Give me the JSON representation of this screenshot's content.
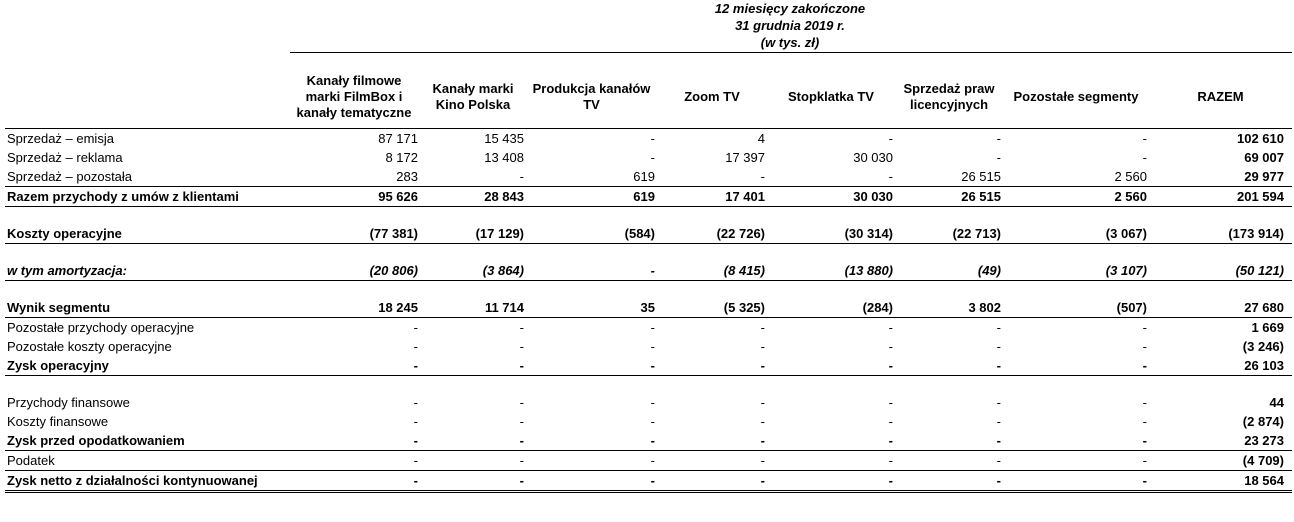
{
  "header": {
    "line1": "12 miesięcy zakończone",
    "line2": "31 grudnia 2019 r.",
    "line3": "(w tys. zł)"
  },
  "columns": [
    "",
    "Kanały filmowe marki FilmBox i kanały tematyczne",
    "Kanały marki Kino Polska",
    "Produkcja kanałów TV",
    "Zoom TV",
    "Stopklatka TV",
    "Sprzedaż praw licencyjnych",
    "Pozostałe segmenty",
    "RAZEM"
  ],
  "rows": [
    {
      "label": "Sprzedaż – emisja",
      "values": [
        "87 171",
        "15 435",
        "-",
        "4",
        "-",
        "-",
        "-",
        "102 610"
      ]
    },
    {
      "label": "Sprzedaż – reklama",
      "values": [
        "8 172",
        "13 408",
        "-",
        "17 397",
        "30 030",
        "-",
        "-",
        "69 007"
      ]
    },
    {
      "label": "Sprzedaż – pozostała",
      "values": [
        "283",
        "-",
        "619",
        "-",
        "-",
        "26 515",
        "2 560",
        "29 977"
      ]
    },
    {
      "label": "Razem przychody z umów z klientami",
      "values": [
        "95 626",
        "28 843",
        "619",
        "17 401",
        "30 030",
        "26 515",
        "2 560",
        "201 594"
      ]
    },
    {
      "label": "Koszty operacyjne",
      "values": [
        "(77 381)",
        "(17 129)",
        "(584)",
        "(22 726)",
        "(30 314)",
        "(22 713)",
        "(3 067)",
        "(173 914)"
      ]
    },
    {
      "label": "w tym amortyzacja:",
      "values": [
        "(20 806)",
        "(3 864)",
        "-",
        "(8 415)",
        "(13 880)",
        "(49)",
        "(3 107)",
        "(50 121)"
      ]
    },
    {
      "label": "Wynik segmentu",
      "values": [
        "18 245",
        "11 714",
        "35",
        "(5 325)",
        "(284)",
        "3 802",
        "(507)",
        "27 680"
      ]
    },
    {
      "label": "Pozostałe przychody operacyjne",
      "values": [
        "-",
        "-",
        "-",
        "-",
        "-",
        "-",
        "-",
        "1 669"
      ]
    },
    {
      "label": "Pozostałe koszty operacyjne",
      "values": [
        "-",
        "-",
        "-",
        "-",
        "-",
        "-",
        "-",
        "(3 246)"
      ]
    },
    {
      "label": "Zysk operacyjny",
      "values": [
        "-",
        "-",
        "-",
        "-",
        "-",
        "-",
        "-",
        "26 103"
      ]
    },
    {
      "label": "Przychody finansowe",
      "values": [
        "-",
        "-",
        "-",
        "-",
        "-",
        "-",
        "-",
        "44"
      ]
    },
    {
      "label": "Koszty finansowe",
      "values": [
        "-",
        "-",
        "-",
        "-",
        "-",
        "-",
        "-",
        "(2 874)"
      ]
    },
    {
      "label": "Zysk przed opodatkowaniem",
      "values": [
        "-",
        "-",
        "-",
        "-",
        "-",
        "-",
        "-",
        "23 273"
      ]
    },
    {
      "label": "Podatek",
      "values": [
        "-",
        "-",
        "-",
        "-",
        "-",
        "-",
        "-",
        "(4 709)"
      ]
    },
    {
      "label": "Zysk netto z działalności kontynuowanej",
      "values": [
        "-",
        "-",
        "-",
        "-",
        "-",
        "-",
        "-",
        "18 564"
      ]
    }
  ]
}
